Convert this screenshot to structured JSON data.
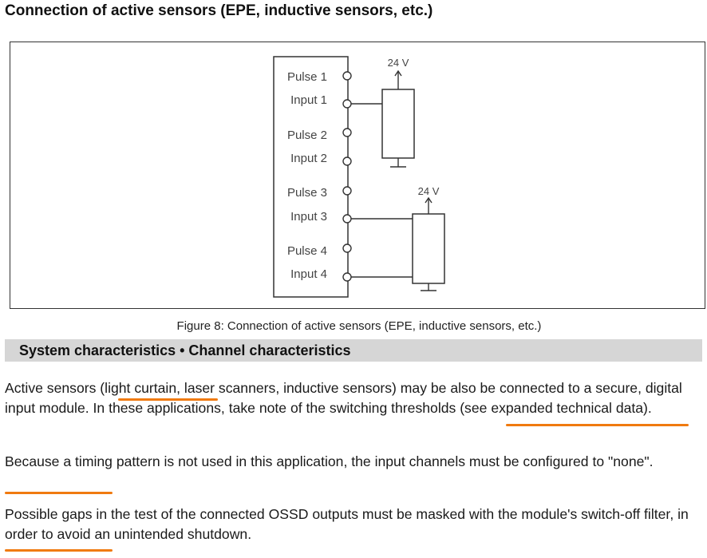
{
  "heading": "Connection of active sensors (EPE, inductive sensors, etc.)",
  "figure": {
    "pins": [
      {
        "label": "Pulse 1"
      },
      {
        "label": "Input 1"
      },
      {
        "label": "Pulse 2"
      },
      {
        "label": "Input 2"
      },
      {
        "label": "Pulse 3"
      },
      {
        "label": "Input 3"
      },
      {
        "label": "Pulse 4"
      },
      {
        "label": "Input 4"
      }
    ],
    "supply_1": "24 V",
    "supply_2": "24 V",
    "caption": "Figure 8: Connection of active sensors (EPE, inductive sensors, etc.)"
  },
  "section_title": "System characteristics • Channel characteristics",
  "paragraphs": {
    "p1": {
      "s1": "Active sensors (",
      "s2": "light curtain,",
      "s3": " laser scanners, inductive sensors) may be also be connected to a secure, digital input module. In these applications, take note of the ",
      "s4": "switching thresholds",
      "s5": " (see expanded technical data)."
    },
    "p2": {
      "s1": "Because a timing pattern is not used in this application, the input channels must be configured to ",
      "s2": "\"none\"",
      "s3": "."
    },
    "p3": {
      "s1": "Possible gaps in the test of the connected OSSD outputs must be masked with the module's ",
      "s2": "switch-off filter",
      "s3": ", in order to avoid an unintended shutdown."
    }
  },
  "colors": {
    "highlight": "#f07a10",
    "section_bar": "#d6d6d6"
  }
}
